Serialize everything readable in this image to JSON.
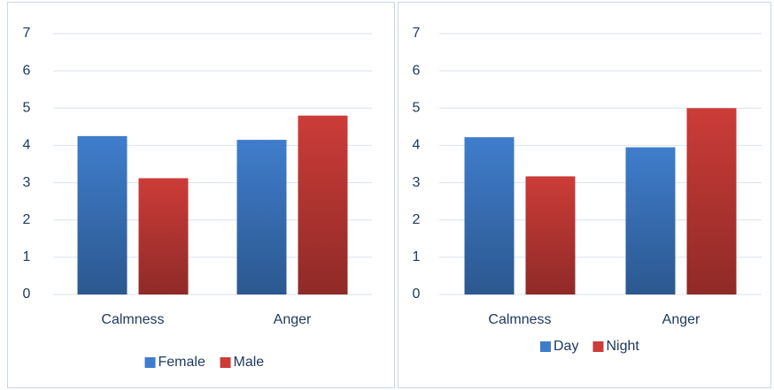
{
  "chart_data": [
    {
      "type": "bar",
      "categories": [
        "Calmness",
        "Anger"
      ],
      "series": [
        {
          "name": "Female",
          "color": "#3f7dcc",
          "values": [
            4.25,
            4.15
          ]
        },
        {
          "name": "Male",
          "color": "#cc3c38",
          "values": [
            3.12,
            4.8
          ]
        }
      ],
      "ylim": [
        0,
        7
      ],
      "yticks": [
        0,
        1,
        2,
        3,
        4,
        5,
        6,
        7
      ],
      "grid": true,
      "legend": "bottom"
    },
    {
      "type": "bar",
      "categories": [
        "Calmness",
        "Anger"
      ],
      "series": [
        {
          "name": "Day",
          "color": "#3f7dcc",
          "values": [
            4.22,
            3.95
          ]
        },
        {
          "name": "Night",
          "color": "#cc3c38",
          "values": [
            3.17,
            5.0
          ]
        }
      ],
      "ylim": [
        0,
        7
      ],
      "yticks": [
        0,
        1,
        2,
        3,
        4,
        5,
        6,
        7
      ],
      "grid": true,
      "legend": "bottom"
    }
  ]
}
